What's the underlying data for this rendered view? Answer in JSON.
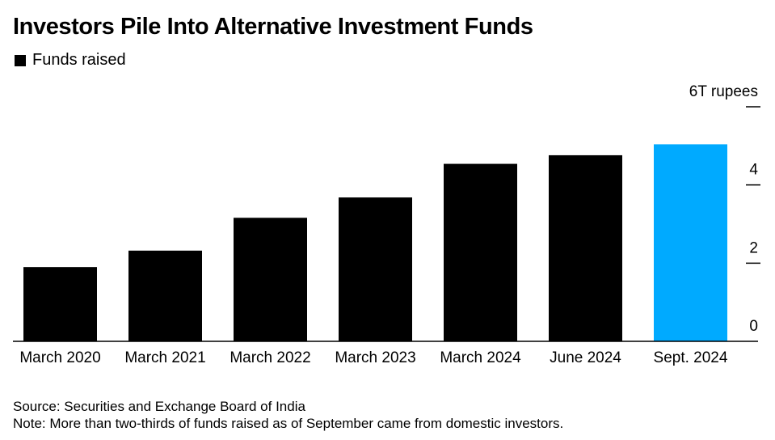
{
  "header": {
    "title": "Investors Pile Into Alternative Investment Funds"
  },
  "legend": {
    "label": "Funds raised"
  },
  "chart_data": {
    "type": "bar",
    "title": "Investors Pile Into Alternative Investment Funds",
    "categories": [
      "March 2020",
      "March 2021",
      "March 2022",
      "March 2023",
      "March 2024",
      "June 2024",
      "Sept. 2024"
    ],
    "series": [
      {
        "name": "Funds raised",
        "values": [
          1.9,
          2.32,
          3.16,
          3.68,
          4.54,
          4.76,
          5.04
        ]
      }
    ],
    "bar_colors": [
      "#000000",
      "#000000",
      "#000000",
      "#000000",
      "#000000",
      "#000000",
      "#00aaff"
    ],
    "ylim": [
      0,
      6
    ],
    "yticks": [
      0,
      2,
      4,
      6
    ],
    "ytick_labels": [
      "0",
      "2",
      "4",
      "6T rupees"
    ],
    "xlabel": "",
    "ylabel": "",
    "grid": false,
    "legend_position": "top-left"
  },
  "footer": {
    "source": "Source: Securities and Exchange Board of India",
    "note": "Note: More than two-thirds of funds raised as of September came from domestic investors."
  }
}
